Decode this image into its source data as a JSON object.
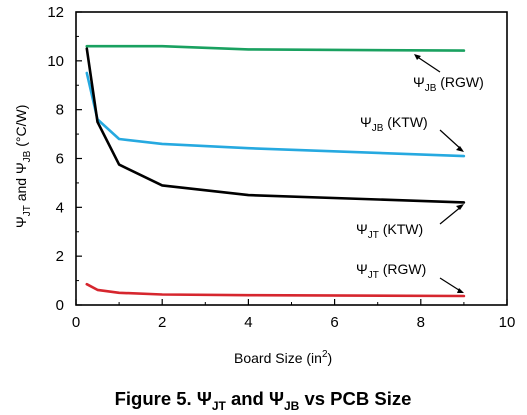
{
  "chart_data": {
    "type": "line",
    "title": "Figure 5. ΨJT and ΨJB vs PCB Size",
    "xlabel": "Board Size (in2)",
    "ylabel": "ΨJT and ΨJB (°C/W)",
    "xlim": [
      0,
      10
    ],
    "ylim": [
      0,
      12
    ],
    "x_ticks": [
      0,
      2,
      4,
      6,
      8,
      10
    ],
    "y_ticks": [
      0,
      2,
      4,
      6,
      8,
      10,
      12
    ],
    "grid": false,
    "legend": "none",
    "series": [
      {
        "name": "ΨJB (RGW)",
        "color": "#1aa160",
        "x": [
          0.25,
          0.5,
          1,
          2,
          4,
          9
        ],
        "y": [
          10.6,
          10.6,
          10.6,
          10.6,
          10.47,
          10.42
        ]
      },
      {
        "name": "ΨJB (KTW)",
        "color": "#26a9e0",
        "x": [
          0.25,
          0.5,
          1,
          2,
          4,
          9
        ],
        "y": [
          9.5,
          7.6,
          6.8,
          6.6,
          6.42,
          6.1
        ]
      },
      {
        "name": "ΨJT (KTW)",
        "color": "#000000",
        "x": [
          0.25,
          0.5,
          1,
          2,
          4,
          9
        ],
        "y": [
          10.5,
          7.5,
          5.75,
          4.9,
          4.5,
          4.2
        ]
      },
      {
        "name": "ΨJT (RGW)",
        "color": "#d6262e",
        "x": [
          0.25,
          0.5,
          1,
          2,
          4,
          9
        ],
        "y": [
          0.85,
          0.62,
          0.5,
          0.43,
          0.4,
          0.37
        ]
      }
    ]
  },
  "labels": {
    "jb_rgw": {
      "psi": "Ψ",
      "sub": "JB",
      "rest": " (RGW)"
    },
    "jb_ktw": {
      "psi": "Ψ",
      "sub": "JB",
      "rest": " (KTW)"
    },
    "jt_ktw": {
      "psi": "Ψ",
      "sub": "JT",
      "rest": " (KTW)"
    },
    "jt_rgw": {
      "psi": "Ψ",
      "sub": "JT",
      "rest": " (RGW)"
    }
  },
  "axis_text": {
    "x_main": "Board Size (in",
    "x_sup": "2",
    "x_close": ")",
    "y_psi1": "Ψ",
    "y_sub1": "JT",
    "y_mid": " and Ψ",
    "y_sub2": "JB",
    "y_rest": " (°C/W)"
  },
  "caption": {
    "prefix": "Figure 5. Ψ",
    "sub1": "JT",
    "mid": " and Ψ",
    "sub2": "JB",
    "suffix": " vs PCB Size"
  }
}
